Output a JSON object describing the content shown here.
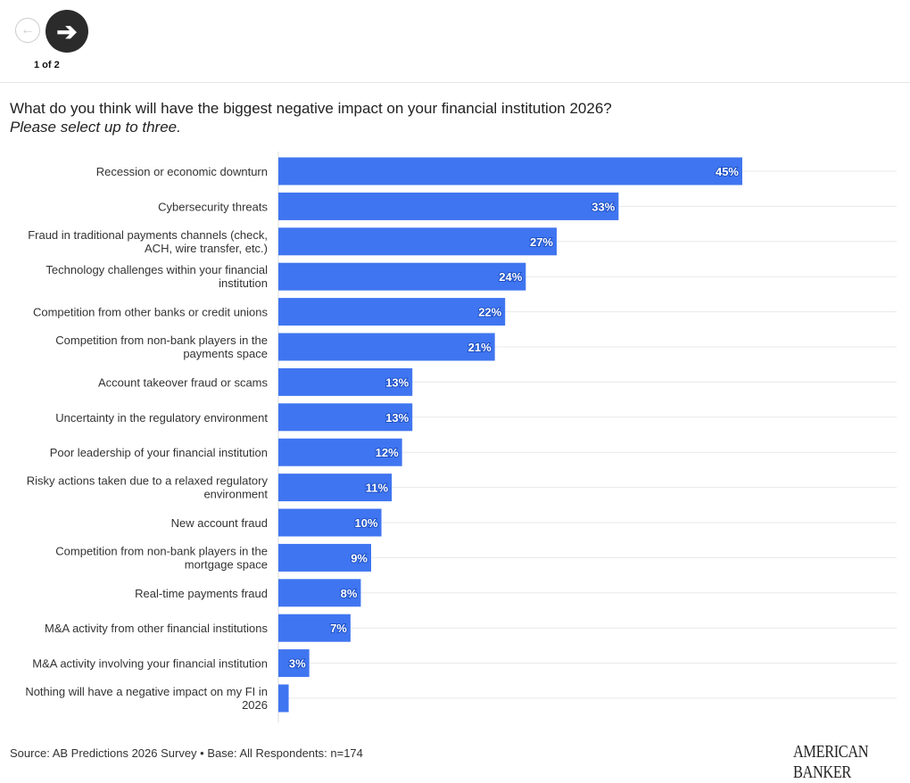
{
  "nav": {
    "prev_icon": "arrow-left-icon",
    "next_icon": "arrow-right-icon",
    "pager": "1 of 2"
  },
  "header": {
    "title": "What do you think will have the biggest negative impact on your financial institution 2026?",
    "subtitle": "Please select up to three."
  },
  "footer": {
    "source": "Source: AB Predictions 2026 Survey • Base: All Respondents: n=174",
    "logo": "AMERICAN BANKER"
  },
  "colors": {
    "bar": "#3f75f0",
    "grid": "#e8e8e8"
  },
  "chart_data": {
    "type": "bar",
    "orientation": "horizontal",
    "xlim": [
      0,
      45
    ],
    "grid": true,
    "categories": [
      [
        "Recession or economic downturn"
      ],
      [
        "Cybersecurity threats"
      ],
      [
        "Fraud in traditional payments channels (check,",
        "ACH, wire transfer, etc.)"
      ],
      [
        "Technology challenges within your financial",
        "institution"
      ],
      [
        "Competition from other banks or credit unions"
      ],
      [
        "Competition from non-bank players in the",
        "payments space"
      ],
      [
        "Account takeover fraud or scams"
      ],
      [
        "Uncertainty in the regulatory environment"
      ],
      [
        "Poor leadership of your financial institution"
      ],
      [
        "Risky actions taken due to a relaxed regulatory",
        "environment"
      ],
      [
        "New account fraud"
      ],
      [
        "Competition from non-bank players in the",
        "mortgage space"
      ],
      [
        "Real-time payments fraud"
      ],
      [
        "M&A activity from other financial institutions"
      ],
      [
        "M&A activity involving your financial institution"
      ],
      [
        "Nothing will have a negative impact on my FI in",
        "2026"
      ]
    ],
    "values": [
      45,
      33,
      27,
      24,
      22,
      21,
      13,
      13,
      12,
      11,
      10,
      9,
      8,
      7,
      3,
      1
    ],
    "labels": [
      "45%",
      "33%",
      "27%",
      "24%",
      "22%",
      "21%",
      "13%",
      "13%",
      "12%",
      "11%",
      "10%",
      "9%",
      "8%",
      "7%",
      "3%",
      ""
    ]
  }
}
